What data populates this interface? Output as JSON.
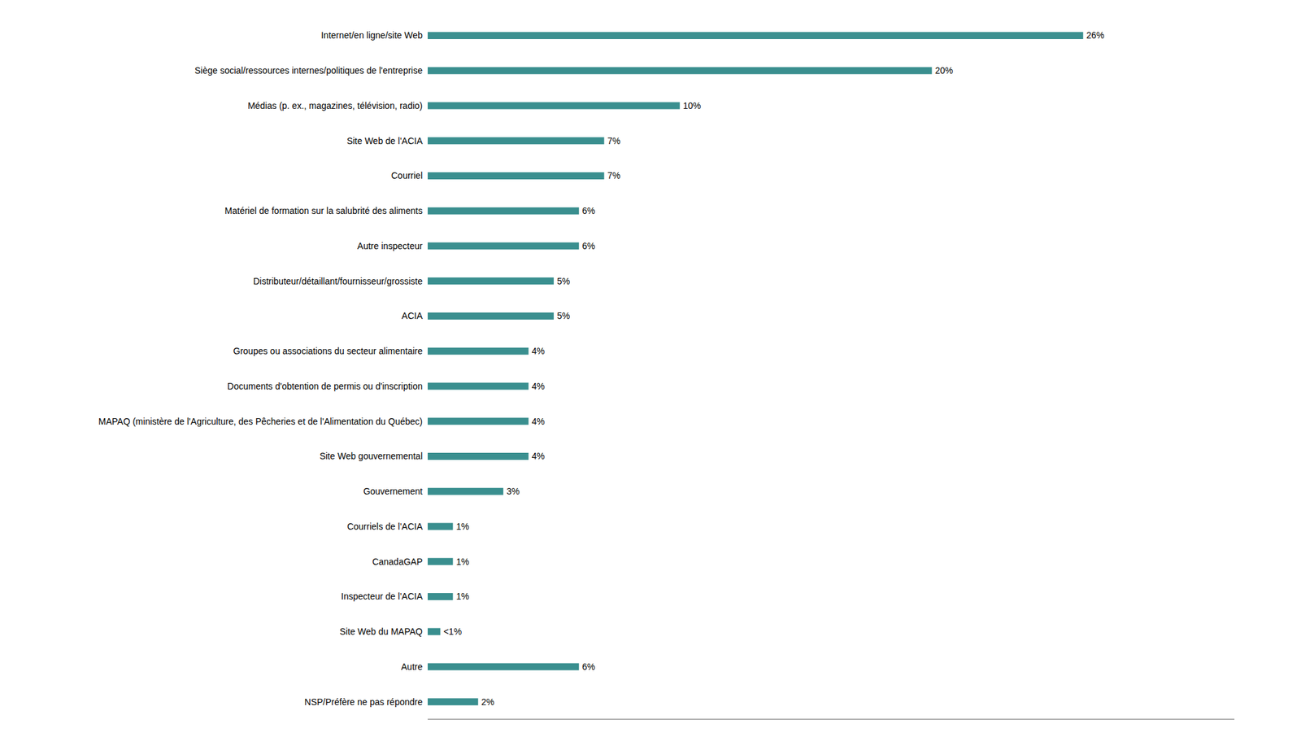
{
  "chart_data": {
    "type": "bar",
    "orientation": "horizontal",
    "categories": [
      "Internet/en ligne/site Web",
      "Siège social/ressources internes/politiques de l'entreprise",
      "Médias (p. ex., magazines, télévision, radio)",
      "Site Web de l'ACIA",
      "Courriel",
      "Matériel de formation sur la salubrité des aliments",
      "Autre inspecteur",
      "Distributeur/détaillant/fournisseur/grossiste",
      "ACIA",
      "Groupes ou associations du secteur alimentaire",
      "Documents d'obtention de permis ou d'inscription",
      "MAPAQ (ministère de l'Agriculture, des Pêcheries et de l'Alimentation du Québec)",
      "Site Web gouvernemental",
      "Gouvernement",
      "Courriels de l'ACIA",
      "CanadaGAP",
      "Inspecteur de l'ACIA",
      "Site Web du MAPAQ",
      "Autre",
      "NSP/Préfère ne pas répondre"
    ],
    "values": [
      26,
      20,
      10,
      7,
      7,
      6,
      6,
      5,
      5,
      4,
      4,
      4,
      4,
      3,
      1,
      1,
      1,
      0.5,
      6,
      2
    ],
    "value_labels": [
      "26%",
      "20%",
      "10%",
      "7%",
      "7%",
      "6%",
      "6%",
      "5%",
      "5%",
      "4%",
      "4%",
      "4%",
      "4%",
      "3%",
      "1%",
      "1%",
      "1%",
      "<1%",
      "6%",
      "2%"
    ],
    "color": "#3a8f8f",
    "xlim": [
      0,
      32
    ],
    "data_labels": true,
    "tick_labels": "y",
    "grid": false
  }
}
